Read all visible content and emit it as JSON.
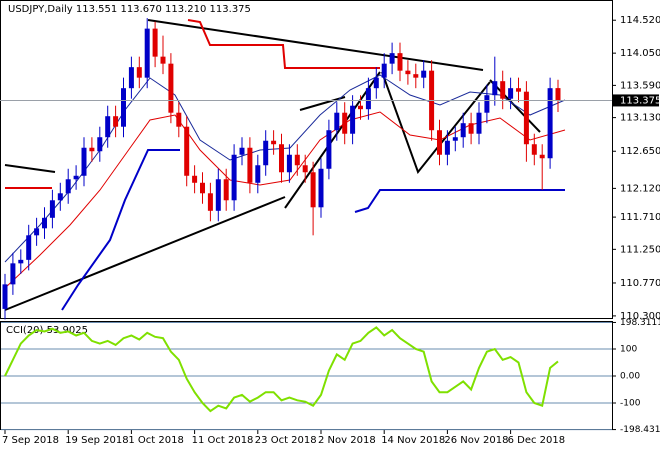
{
  "chart_data": [
    {
      "type": "candlestick",
      "title": "USDJPY,Daily",
      "header_values": [
        "113.551",
        "113.670",
        "113.210",
        "113.375"
      ],
      "categories": [
        "7 Sep 2018",
        null,
        null,
        null,
        null,
        null,
        null,
        null,
        "19 Sep 2018",
        null,
        null,
        null,
        null,
        null,
        null,
        null,
        "1 Oct 2018",
        null,
        null,
        null,
        null,
        null,
        null,
        null,
        "11 Oct 2018",
        null,
        null,
        null,
        null,
        null,
        null,
        null,
        "23 Oct 2018",
        null,
        null,
        null,
        null,
        null,
        null,
        null,
        "2 Nov 2018",
        null,
        null,
        null,
        null,
        null,
        null,
        null,
        "14 Nov 2018",
        null,
        null,
        null,
        null,
        null,
        null,
        null,
        "26 Nov 2018",
        null,
        null,
        null,
        null,
        null,
        null,
        null,
        "6 Dec 2018",
        null,
        null,
        null,
        null,
        null,
        null
      ],
      "open": [
        110.4,
        110.75,
        111.05,
        111.1,
        111.45,
        111.55,
        111.7,
        111.95,
        112.05,
        112.25,
        112.3,
        112.7,
        112.65,
        112.85,
        113.15,
        113.0,
        113.55,
        113.85,
        113.7,
        114.4,
        114.0,
        113.9,
        113.2,
        113.0,
        112.3,
        112.2,
        112.05,
        111.8,
        112.25,
        111.95,
        112.6,
        112.7,
        112.2,
        112.45,
        112.8,
        112.75,
        112.35,
        112.6,
        112.45,
        112.35,
        111.85,
        112.4,
        112.95,
        113.2,
        112.9,
        113.3,
        113.25,
        113.55,
        113.7,
        113.9,
        114.05,
        113.8,
        113.75,
        113.7,
        113.8,
        112.95,
        112.6,
        112.8,
        112.85,
        113.05,
        112.9,
        113.2,
        113.45,
        113.65,
        113.4,
        113.55,
        113.5,
        112.75,
        112.6,
        112.55,
        113.551
      ],
      "high": [
        110.9,
        111.2,
        111.25,
        111.6,
        111.7,
        111.85,
        112.1,
        112.2,
        112.4,
        112.45,
        112.85,
        112.85,
        113.0,
        113.3,
        113.3,
        113.7,
        114.0,
        114.0,
        114.55,
        114.5,
        114.3,
        114.05,
        113.35,
        113.15,
        112.45,
        112.35,
        112.2,
        112.4,
        112.4,
        112.75,
        112.85,
        112.85,
        112.6,
        112.95,
        112.95,
        112.9,
        112.75,
        112.75,
        112.6,
        112.5,
        112.55,
        113.1,
        113.35,
        113.35,
        113.45,
        113.45,
        113.7,
        113.85,
        114.05,
        114.2,
        114.2,
        113.95,
        113.9,
        113.95,
        113.95,
        113.1,
        112.95,
        113.0,
        113.2,
        113.2,
        113.35,
        113.6,
        114.0,
        113.8,
        113.7,
        113.7,
        113.65,
        112.9,
        112.75,
        113.7,
        113.67
      ],
      "low": [
        110.25,
        110.6,
        110.9,
        110.95,
        111.3,
        111.4,
        111.55,
        111.8,
        111.9,
        112.1,
        112.15,
        112.5,
        112.5,
        112.7,
        112.85,
        112.85,
        113.4,
        113.55,
        113.55,
        113.85,
        113.75,
        113.05,
        112.85,
        112.15,
        112.05,
        111.9,
        111.65,
        111.65,
        111.8,
        111.8,
        112.45,
        112.05,
        112.05,
        112.3,
        112.6,
        112.2,
        112.2,
        112.3,
        112.2,
        111.45,
        111.7,
        112.25,
        112.8,
        112.75,
        112.75,
        113.1,
        113.1,
        113.4,
        113.55,
        113.75,
        113.65,
        113.6,
        113.55,
        113.55,
        112.8,
        112.45,
        112.45,
        112.65,
        112.7,
        112.75,
        112.75,
        113.05,
        113.3,
        113.25,
        113.25,
        113.35,
        112.5,
        112.45,
        112.1,
        112.4,
        113.21
      ],
      "close": [
        110.75,
        111.05,
        111.1,
        111.45,
        111.55,
        111.7,
        111.95,
        112.05,
        112.25,
        112.3,
        112.7,
        112.65,
        112.85,
        113.15,
        113.0,
        113.55,
        113.85,
        113.7,
        114.4,
        114.0,
        113.9,
        113.2,
        113.0,
        112.3,
        112.2,
        112.05,
        111.8,
        112.25,
        111.95,
        112.6,
        112.7,
        112.2,
        112.45,
        112.8,
        112.75,
        112.35,
        112.6,
        112.45,
        112.35,
        111.85,
        112.4,
        112.95,
        113.2,
        112.9,
        113.3,
        113.25,
        113.55,
        113.7,
        113.9,
        114.05,
        113.8,
        113.75,
        113.7,
        113.8,
        112.95,
        112.6,
        112.8,
        112.85,
        113.05,
        112.9,
        113.2,
        113.45,
        113.65,
        113.4,
        113.55,
        113.5,
        112.75,
        112.6,
        112.55,
        113.55,
        113.375
      ],
      "up_color": "#0000c8",
      "down_color": "#e00000",
      "last_price": 113.375,
      "ylim": [
        110.27,
        114.78
      ],
      "yticks": [
        {
          "value": 114.52,
          "label": "114.520"
        },
        {
          "value": 114.05,
          "label": "114.050"
        },
        {
          "value": 113.59,
          "label": "113.590"
        },
        {
          "value": 113.13,
          "label": "113.130"
        },
        {
          "value": 112.65,
          "label": "112.650"
        },
        {
          "value": 112.12,
          "label": "112.120"
        },
        {
          "value": 111.71,
          "label": "111.710"
        },
        {
          "value": 111.25,
          "label": "111.250"
        },
        {
          "value": 110.77,
          "label": "110.770"
        },
        {
          "value": 110.3,
          "label": "110.300"
        }
      ]
    },
    {
      "type": "line",
      "title": "CCI(20) 53.9025",
      "series": [
        {
          "name": "CCI(20)",
          "color": "#7fe000",
          "values": [
            0,
            60,
            120,
            150,
            170,
            165,
            175,
            160,
            165,
            150,
            160,
            130,
            120,
            130,
            115,
            140,
            150,
            135,
            160,
            145,
            140,
            90,
            60,
            -10,
            -60,
            -100,
            -130,
            -110,
            -120,
            -80,
            -70,
            -95,
            -80,
            -60,
            -60,
            -90,
            -80,
            -90,
            -95,
            -110,
            -70,
            20,
            80,
            60,
            120,
            130,
            160,
            180,
            150,
            170,
            140,
            120,
            100,
            90,
            -20,
            -60,
            -60,
            -40,
            -20,
            -50,
            30,
            90,
            100,
            60,
            70,
            50,
            -60,
            -100,
            -110,
            30,
            53.9025
          ]
        }
      ],
      "ylim": [
        -200,
        200
      ],
      "yticks": [
        198.3111,
        100,
        {
          "value": 0,
          "label": "0.00"
        },
        -100,
        -198.4314
      ]
    }
  ]
}
